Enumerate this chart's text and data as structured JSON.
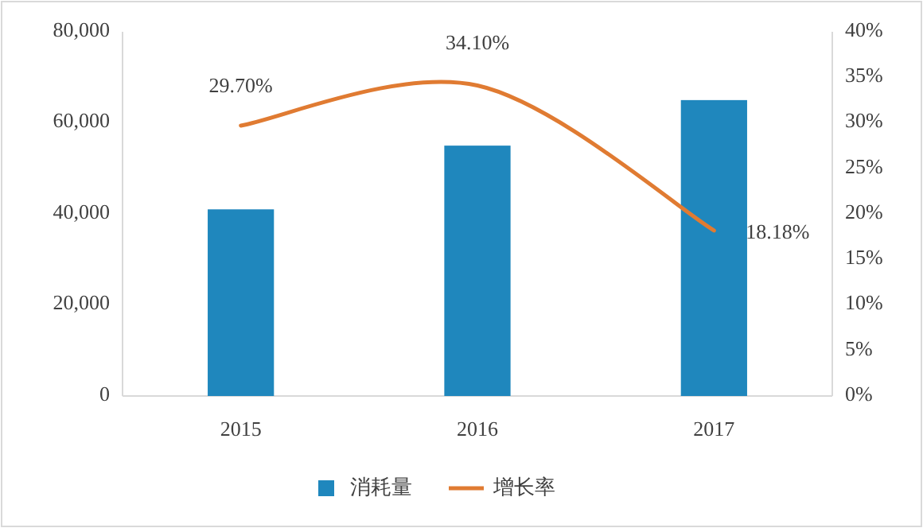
{
  "chart_data": {
    "type": "bar",
    "categories": [
      "2015",
      "2016",
      "2017"
    ],
    "series": [
      {
        "name": "消耗量",
        "color": "#1f87bd",
        "values": [
          41000,
          55000,
          65000
        ]
      },
      {
        "name": "增长率",
        "type": "line",
        "axis": "y2",
        "color": "#e07b32",
        "values": [
          29.7,
          34.1,
          18.18
        ],
        "value_labels": [
          "29.70%",
          "34.10%",
          "18.18%"
        ]
      }
    ],
    "ylim": [
      0,
      80000
    ],
    "yticks": [
      0,
      {
        "value": 20000,
        "label": "20,000"
      },
      {
        "value": 40000,
        "label": "40,000"
      },
      {
        "value": 60000,
        "label": "60,000"
      },
      {
        "value": 80000,
        "label": "80,000"
      }
    ],
    "y2lim": [
      0,
      40
    ],
    "y2ticks": [
      {
        "value": 0,
        "label": "0%"
      },
      {
        "value": 5,
        "label": "5%"
      },
      {
        "value": 10,
        "label": "10%"
      },
      {
        "value": 15,
        "label": "15%"
      },
      {
        "value": 20,
        "label": "20%"
      },
      {
        "value": 25,
        "label": "25%"
      },
      {
        "value": 30,
        "label": "30%"
      },
      {
        "value": 35,
        "label": "35%"
      },
      {
        "value": 40,
        "label": "40%"
      }
    ],
    "legend": "bottom",
    "marker": "none"
  }
}
